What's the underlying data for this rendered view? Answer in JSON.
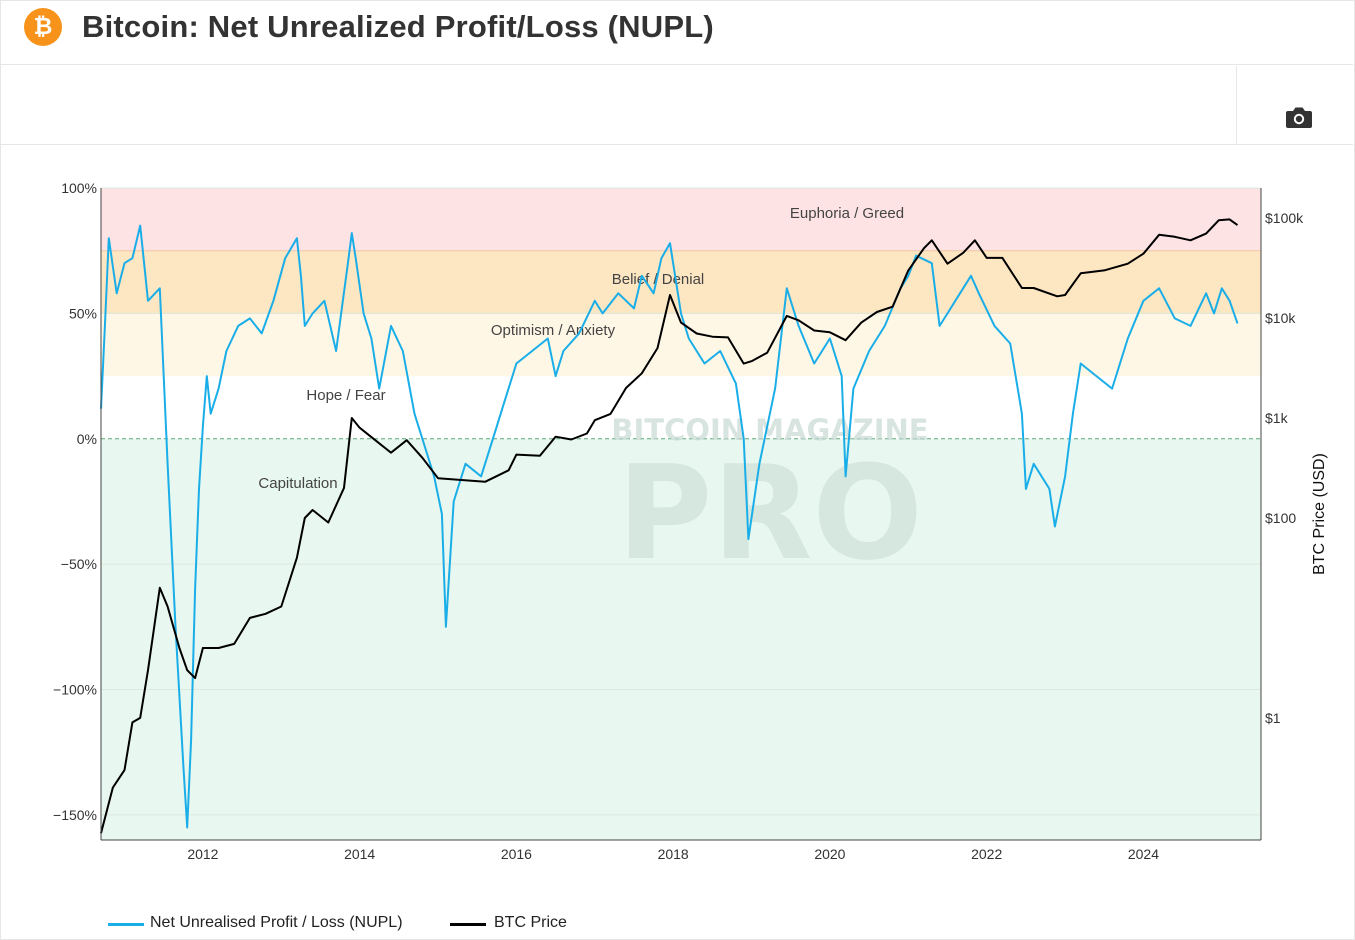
{
  "header": {
    "title": "Bitcoin: Net Unrealized Profit/Loss (NUPL)",
    "coin_symbol": "₿"
  },
  "toolbar": {
    "camera_icon": "camera-icon"
  },
  "chart_data": {
    "type": "line",
    "title": "Bitcoin: Net Unrealized Profit/Loss (NUPL)",
    "xlabel": "",
    "ylabel_left": "",
    "ylabel_right": "BTC Price (USD)",
    "x_range": [
      2010.7,
      2025.5
    ],
    "x_ticks": [
      2012,
      2014,
      2016,
      2018,
      2020,
      2022,
      2024
    ],
    "x_tick_labels": [
      "2012",
      "2014",
      "2016",
      "2018",
      "2020",
      "2022",
      "2024"
    ],
    "y_left_range": [
      -160,
      100
    ],
    "y_left_ticks": [
      100,
      50,
      0,
      -50,
      -100,
      -150
    ],
    "y_left_tick_labels": [
      "100%",
      "50%",
      "0%",
      "−50%",
      "−100%",
      "−150%"
    ],
    "y_right_scale": "log",
    "y_right_range": [
      0.06,
      200000
    ],
    "y_right_ticks": [
      1,
      100,
      1000,
      10000,
      100000
    ],
    "y_right_tick_labels": [
      "$1",
      "$100",
      "$1k",
      "$10k",
      "$100k"
    ],
    "zones": [
      {
        "name": "Euphoria / Greed",
        "from": 75,
        "to": 100,
        "color": "#fde3e3"
      },
      {
        "name": "Belief / Denial",
        "from": 50,
        "to": 75,
        "color": "#fde6c2"
      },
      {
        "name": "Optimism / Anxiety",
        "from": 25,
        "to": 50,
        "color": "#fff7e6"
      },
      {
        "name": "Hope / Fear",
        "from": 0,
        "to": 25,
        "color": "#ffffff"
      },
      {
        "name": "Capitulation",
        "from": -160,
        "to": 0,
        "color": "#e8f7ef"
      }
    ],
    "series": [
      {
        "name": "Net Unrealised Profit / Loss (NUPL)",
        "axis": "left",
        "color": "#1aaee8",
        "x": [
          2010.7,
          2010.75,
          2010.8,
          2010.9,
          2011.0,
          2011.1,
          2011.2,
          2011.3,
          2011.45,
          2011.55,
          2011.65,
          2011.75,
          2011.8,
          2011.85,
          2011.9,
          2011.95,
          2012.0,
          2012.05,
          2012.1,
          2012.2,
          2012.3,
          2012.45,
          2012.6,
          2012.75,
          2012.9,
          2013.05,
          2013.2,
          2013.25,
          2013.3,
          2013.4,
          2013.55,
          2013.7,
          2013.85,
          2013.9,
          2013.95,
          2014.05,
          2014.15,
          2014.25,
          2014.4,
          2014.55,
          2014.7,
          2014.85,
          2014.95,
          2015.05,
          2015.1,
          2015.2,
          2015.35,
          2015.55,
          2015.7,
          2015.85,
          2016.0,
          2016.2,
          2016.4,
          2016.5,
          2016.6,
          2016.8,
          2017.0,
          2017.1,
          2017.3,
          2017.5,
          2017.6,
          2017.75,
          2017.85,
          2017.96,
          2018.1,
          2018.2,
          2018.4,
          2018.6,
          2018.8,
          2018.9,
          2018.96,
          2019.1,
          2019.3,
          2019.45,
          2019.6,
          2019.8,
          2020.0,
          2020.15,
          2020.2,
          2020.3,
          2020.5,
          2020.7,
          2020.9,
          2021.0,
          2021.1,
          2021.3,
          2021.4,
          2021.5,
          2021.6,
          2021.8,
          2021.9,
          2022.1,
          2022.3,
          2022.45,
          2022.5,
          2022.6,
          2022.8,
          2022.87,
          2023.0,
          2023.1,
          2023.2,
          2023.4,
          2023.6,
          2023.8,
          2024.0,
          2024.2,
          2024.4,
          2024.6,
          2024.8,
          2024.9,
          2025.0,
          2025.1,
          2025.2
        ],
        "values": [
          12,
          45,
          80,
          58,
          70,
          72,
          85,
          55,
          60,
          -10,
          -75,
          -130,
          -155,
          -120,
          -60,
          -20,
          5,
          25,
          10,
          20,
          35,
          45,
          48,
          42,
          55,
          72,
          80,
          65,
          45,
          50,
          55,
          35,
          70,
          82,
          72,
          50,
          40,
          20,
          45,
          35,
          10,
          -5,
          -15,
          -30,
          -75,
          -25,
          -10,
          -15,
          0,
          15,
          30,
          35,
          40,
          25,
          35,
          42,
          55,
          50,
          58,
          52,
          65,
          58,
          72,
          78,
          50,
          40,
          30,
          35,
          22,
          0,
          -40,
          -10,
          20,
          60,
          45,
          30,
          40,
          25,
          -15,
          20,
          35,
          45,
          60,
          65,
          73,
          70,
          45,
          50,
          55,
          65,
          58,
          45,
          38,
          10,
          -20,
          -10,
          -20,
          -35,
          -15,
          10,
          30,
          25,
          20,
          40,
          55,
          60,
          48,
          45,
          58,
          50,
          60,
          55,
          46
        ]
      },
      {
        "name": "BTC Price",
        "axis": "right",
        "color": "#000000",
        "x": [
          2010.7,
          2010.85,
          2011.0,
          2011.1,
          2011.2,
          2011.3,
          2011.45,
          2011.55,
          2011.7,
          2011.8,
          2011.9,
          2012.0,
          2012.2,
          2012.4,
          2012.6,
          2012.8,
          2013.0,
          2013.2,
          2013.3,
          2013.4,
          2013.6,
          2013.8,
          2013.9,
          2014.0,
          2014.2,
          2014.4,
          2014.6,
          2014.8,
          2015.0,
          2015.3,
          2015.6,
          2015.9,
          2016.0,
          2016.3,
          2016.5,
          2016.7,
          2016.9,
          2017.0,
          2017.2,
          2017.4,
          2017.6,
          2017.8,
          2017.96,
          2018.1,
          2018.3,
          2018.5,
          2018.7,
          2018.9,
          2019.0,
          2019.2,
          2019.45,
          2019.6,
          2019.8,
          2020.0,
          2020.2,
          2020.4,
          2020.6,
          2020.8,
          2021.0,
          2021.2,
          2021.3,
          2021.5,
          2021.7,
          2021.85,
          2022.0,
          2022.2,
          2022.45,
          2022.6,
          2022.9,
          2023.0,
          2023.2,
          2023.5,
          2023.8,
          2024.0,
          2024.2,
          2024.4,
          2024.6,
          2024.8,
          2024.96,
          2025.1,
          2025.2
        ],
        "values": [
          0.07,
          0.2,
          0.3,
          0.9,
          1.0,
          3,
          20,
          13,
          5,
          3,
          2.5,
          5,
          5,
          5.5,
          10,
          11,
          13,
          40,
          100,
          120,
          90,
          200,
          1000,
          800,
          600,
          450,
          600,
          400,
          250,
          240,
          230,
          300,
          430,
          420,
          650,
          610,
          700,
          950,
          1100,
          2000,
          2800,
          5000,
          17000,
          9000,
          7000,
          6500,
          6400,
          3500,
          3700,
          4500,
          10500,
          9500,
          7500,
          7200,
          6000,
          9000,
          11500,
          13000,
          30000,
          50000,
          60000,
          35000,
          45000,
          60000,
          40000,
          40000,
          20000,
          20000,
          16500,
          17000,
          28000,
          30000,
          35000,
          44000,
          68000,
          65000,
          60000,
          70000,
          95000,
          97000,
          85000
        ]
      }
    ],
    "annotations": [
      "Euphoria / Greed",
      "Belief / Denial",
      "Optimism / Anxiety",
      "Hope / Fear",
      "Capitulation"
    ],
    "watermark": [
      "BITCOIN MAGAZINE",
      "PRO"
    ],
    "legend_position": "bottom-left"
  },
  "legend": {
    "items": [
      {
        "label": "Net Unrealised Profit / Loss (NUPL)",
        "color": "#1aaee8"
      },
      {
        "label": "BTC Price",
        "color": "#000000"
      }
    ]
  }
}
